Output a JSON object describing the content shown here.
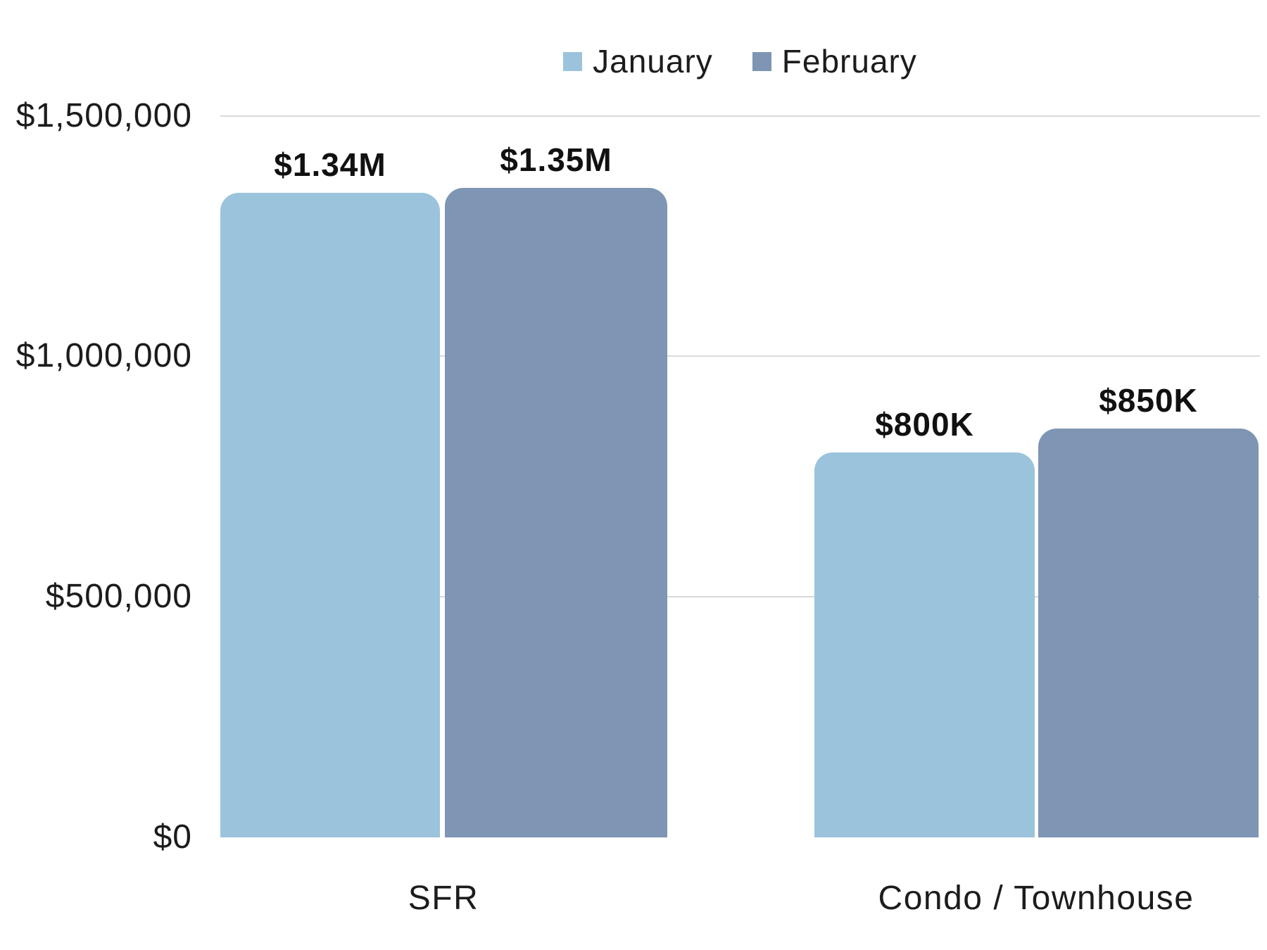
{
  "chart_data": {
    "type": "bar",
    "title": "",
    "categories": [
      "SFR",
      "Condo / Townhouse"
    ],
    "series": [
      {
        "name": "January",
        "color": "#9BC3DC",
        "values": [
          1340000,
          800000
        ],
        "data_labels": [
          "$1.34M",
          "$800K"
        ]
      },
      {
        "name": "February",
        "color": "#7E95B4",
        "values": [
          1350000,
          850000
        ],
        "data_labels": [
          "$1.35M",
          "$850K"
        ]
      }
    ],
    "ylim": [
      0,
      1500000
    ],
    "y_tick_values": [
      1500000,
      1000000,
      500000,
      0
    ],
    "y_tick_labels": [
      "$1,500,000",
      "$1,000,000",
      "$500,000",
      "$0"
    ],
    "grid": "horizontal",
    "gridline_color": "#D9D9D9",
    "legend_position": "top-center",
    "bar_style": "rounded-top"
  }
}
